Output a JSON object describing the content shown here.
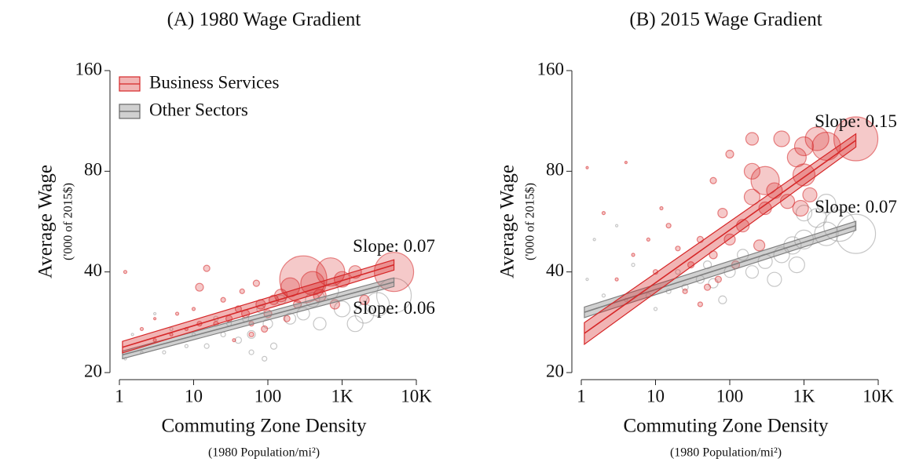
{
  "chart_data": [
    {
      "type": "scatter",
      "title": "(A) 1980 Wage Gradient",
      "xlabel": "Commuting Zone Density",
      "xlabel_note": "(1980 Population/mi²)",
      "ylabel": "Average Wage",
      "ylabel_note": "('000 of 2015$)",
      "log_x": true,
      "log_y": true,
      "legend": "upper left",
      "xlim": [
        1,
        10000
      ],
      "ylim": [
        20,
        160
      ],
      "xticks": [
        1,
        10,
        100,
        {
          "value": 1000,
          "label": "1K"
        },
        {
          "value": 10000,
          "label": "10K"
        }
      ],
      "yticks": [
        20,
        40,
        80,
        160
      ],
      "series": [
        {
          "name": "Business Services",
          "color": "#d62728",
          "x": [
            300,
            700,
            5000,
            200,
            400,
            1000,
            150,
            80,
            50,
            30,
            20,
            12,
            12,
            8,
            5,
            3,
            2,
            1.2,
            15,
            25,
            40,
            60,
            100,
            120,
            250,
            500,
            800,
            1500,
            2000,
            60,
            35,
            90,
            45,
            180,
            10,
            6,
            3,
            70
          ],
          "y": [
            38,
            40,
            40,
            36,
            37,
            38,
            34,
            32,
            30,
            29,
            28,
            36,
            28,
            27,
            26,
            25,
            27,
            40,
            41,
            33,
            31,
            28,
            30,
            33,
            32,
            34,
            32,
            40,
            33,
            26,
            25,
            27,
            35,
            29,
            31,
            30,
            29,
            37
          ],
          "sizes": [
            30,
            18,
            25,
            12,
            15,
            10,
            8,
            6,
            5,
            4,
            3,
            5,
            3,
            2,
            2,
            2,
            2,
            2,
            4,
            3,
            4,
            3,
            5,
            6,
            5,
            8,
            6,
            8,
            6,
            3,
            2,
            4,
            3,
            4,
            2,
            2,
            1.5,
            4
          ]
        },
        {
          "name": "Other Sectors",
          "color": "#a0a0a0",
          "x": [
            5000,
            3000,
            2000,
            1000,
            700,
            400,
            300,
            200,
            100,
            60,
            40,
            25,
            15,
            8,
            4,
            2,
            1.2,
            150,
            80,
            50,
            30,
            20,
            10,
            5,
            3,
            1.5,
            120,
            500,
            1500,
            90,
            60
          ],
          "y": [
            34,
            32,
            30,
            31,
            35,
            33,
            30,
            29,
            28,
            26,
            25,
            26,
            24,
            24,
            23,
            23,
            22,
            33,
            31,
            29,
            28,
            29,
            26,
            27,
            30,
            26,
            24,
            28,
            28,
            22,
            23
          ],
          "sizes": [
            22,
            15,
            12,
            10,
            10,
            9,
            8,
            7,
            6,
            5,
            4,
            3,
            3,
            2,
            2,
            1.5,
            1.5,
            6,
            5,
            4,
            3,
            3,
            2,
            2,
            1.5,
            1.5,
            4,
            8,
            10,
            3,
            3
          ]
        }
      ],
      "fits": [
        {
          "color": "#d62728",
          "x": [
            1.1,
            5000
          ],
          "values": [
            23.8,
            42
          ],
          "lower": [
            22.9,
            40.5
          ],
          "upper": [
            24.8,
            43.5
          ],
          "label": "Slope: 0.07",
          "label_side": "above"
        },
        {
          "color": "#808080",
          "x": [
            1.1,
            5000
          ],
          "values": [
            22.6,
            37.3
          ],
          "lower": [
            22.0,
            36.2
          ],
          "upper": [
            23.2,
            38.4
          ],
          "label": "Slope: 0.06",
          "label_side": "below"
        }
      ]
    },
    {
      "type": "scatter",
      "title": "(B) 2015 Wage Gradient",
      "xlabel": "Commuting Zone Density",
      "xlabel_note": "(1980 Population/mi²)",
      "ylabel": "Average Wage",
      "ylabel_note": "('000 of 2015$)",
      "log_x": true,
      "log_y": true,
      "xlim": [
        1,
        10000
      ],
      "ylim": [
        20,
        160
      ],
      "xticks": [
        1,
        10,
        100,
        {
          "value": 1000,
          "label": "1K"
        },
        {
          "value": 10000,
          "label": "10K"
        }
      ],
      "yticks": [
        20,
        40,
        80,
        160
      ],
      "series": [
        {
          "color": "#d62728",
          "x": [
            5000,
            2000,
            1500,
            1000,
            1000,
            800,
            500,
            300,
            200,
            400,
            200,
            300,
            150,
            100,
            80,
            60,
            40,
            30,
            20,
            15,
            10,
            5,
            3,
            2,
            1.2,
            4,
            50,
            70,
            120,
            250,
            600,
            900,
            1200,
            40,
            25,
            8,
            12,
            200,
            100,
            60
          ],
          "y": [
            100,
            95,
            100,
            95,
            78,
            88,
            100,
            75,
            80,
            70,
            67,
            62,
            55,
            50,
            60,
            45,
            50,
            42,
            47,
            55,
            40,
            45,
            38,
            60,
            82,
            85,
            36,
            38,
            42,
            48,
            65,
            62,
            68,
            32,
            35,
            50,
            62,
            100,
            90,
            75
          ],
          "sizes": [
            28,
            18,
            15,
            12,
            14,
            12,
            10,
            18,
            10,
            10,
            10,
            8,
            8,
            7,
            6,
            5,
            4,
            4,
            3,
            3,
            3,
            2,
            2,
            2,
            1.5,
            1.5,
            4,
            4,
            5,
            7,
            9,
            10,
            9,
            3,
            3,
            2,
            2,
            8,
            5,
            4
          ]
        },
        {
          "color": "#a0a0a0",
          "x": [
            5000,
            3000,
            2000,
            1500,
            1000,
            700,
            500,
            300,
            200,
            100,
            60,
            40,
            25,
            15,
            8,
            4,
            2,
            1.2,
            1.5,
            3,
            5,
            150,
            400,
            800,
            1000,
            2000,
            80,
            50,
            20,
            10
          ],
          "y": [
            52,
            55,
            52,
            58,
            50,
            48,
            45,
            43,
            40,
            40,
            37,
            38,
            36,
            35,
            34,
            33,
            34,
            38,
            50,
            55,
            42,
            45,
            38,
            42,
            60,
            64,
            33,
            42,
            40,
            31
          ],
          "sizes": [
            25,
            20,
            15,
            12,
            12,
            11,
            10,
            9,
            8,
            7,
            6,
            5,
            4,
            3,
            3,
            2,
            2,
            1.5,
            1.5,
            1.5,
            2,
            7,
            9,
            10,
            10,
            12,
            5,
            5,
            3,
            2
          ]
        }
      ],
      "fits": [
        {
          "color": "#d62728",
          "x": [
            1.1,
            5000
          ],
          "values": [
            26.2,
            99
          ],
          "lower": [
            24.3,
            94.5
          ],
          "upper": [
            28.2,
            103.5
          ],
          "label": "Slope: 0.15",
          "label_side": "above"
        },
        {
          "color": "#808080",
          "x": [
            1.1,
            5000
          ],
          "values": [
            30.3,
            55
          ],
          "lower": [
            29.2,
            53.3
          ],
          "upper": [
            31.4,
            56.7
          ],
          "label": "Slope: 0.07",
          "label_side": "above"
        }
      ]
    }
  ]
}
